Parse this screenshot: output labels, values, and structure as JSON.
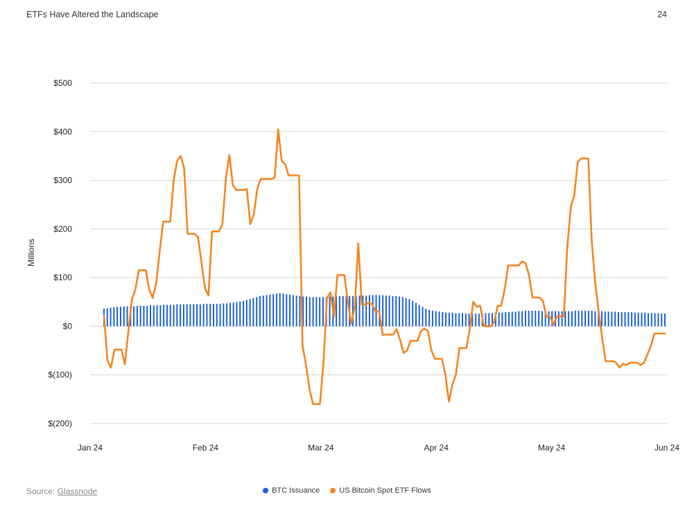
{
  "header": {
    "title": "ETFs Have Altered the Landscape",
    "page_number": "24"
  },
  "footer": {
    "source_prefix": "Source: ",
    "source_name": "Glassnode"
  },
  "colors": {
    "issuance": "#1a5fd6",
    "flows": "#f5841f",
    "grid": "#cfd6cf",
    "axis_text": "#222222"
  },
  "chart_data": {
    "type": "bar+line",
    "title": "",
    "xlabel": "",
    "ylabel": "Millions",
    "ylim": [
      -200,
      500
    ],
    "yticks": [
      500,
      400,
      300,
      200,
      100,
      0,
      -100,
      -200
    ],
    "ytick_labels": [
      "$500",
      "$400",
      "$300",
      "$200",
      "$100",
      "$0",
      "$(100)",
      "$(200)"
    ],
    "x_ticks": [
      "Jan 24",
      "Feb 24",
      "Mar 24",
      "Apr 24",
      "May 24",
      "Jun 24"
    ],
    "grid": "horizontal",
    "legend_position": "bottom-center",
    "series": [
      {
        "name": "BTC Issuance",
        "type": "bar",
        "color": "#1a5fd6",
        "values": [
          36,
          37,
          38,
          39,
          40,
          40,
          41,
          41,
          41,
          41,
          42,
          42,
          42,
          42,
          43,
          43,
          43,
          43,
          44,
          44,
          44,
          44,
          45,
          45,
          45,
          45,
          45,
          45,
          45,
          45,
          46,
          46,
          46,
          46,
          46,
          46,
          47,
          47,
          48,
          49,
          50,
          51,
          52,
          54,
          56,
          58,
          60,
          62,
          63,
          64,
          65,
          66,
          67,
          68,
          67,
          66,
          65,
          64,
          63,
          62,
          61,
          61,
          60,
          60,
          60,
          60,
          60,
          60,
          61,
          61,
          62,
          62,
          62,
          62,
          62,
          62,
          62,
          63,
          63,
          63,
          64,
          64,
          64,
          64,
          64,
          63,
          63,
          62,
          62,
          61,
          60,
          58,
          56,
          52,
          48,
          44,
          40,
          36,
          34,
          32,
          31,
          30,
          29,
          28,
          28,
          28,
          27,
          27,
          27,
          26,
          26,
          26,
          26,
          26,
          26,
          27,
          27,
          27,
          28,
          28,
          28,
          29,
          29,
          30,
          30,
          31,
          31,
          32,
          32,
          32,
          32,
          32,
          31,
          31,
          31,
          31,
          31,
          31,
          31,
          31,
          31,
          31,
          32,
          32,
          32,
          32,
          32,
          32,
          31,
          31,
          31,
          30,
          30,
          30,
          30,
          29,
          29,
          29,
          29,
          29,
          28,
          28,
          28,
          28,
          27,
          27,
          27,
          27,
          26,
          26
        ]
      },
      {
        "name": "US Bitcoin Spot ETF Flows",
        "type": "line",
        "color": "#f5841f",
        "points": [
          [
            0,
            22
          ],
          [
            1,
            -70
          ],
          [
            2,
            -85
          ],
          [
            3,
            -48
          ],
          [
            4,
            -48
          ],
          [
            5,
            -48
          ],
          [
            6,
            -78
          ],
          [
            7,
            -10
          ],
          [
            8,
            55
          ],
          [
            9,
            75
          ],
          [
            10,
            115
          ],
          [
            11,
            115
          ],
          [
            12,
            115
          ],
          [
            13,
            75
          ],
          [
            14,
            58
          ],
          [
            15,
            90
          ],
          [
            16,
            155
          ],
          [
            17,
            215
          ],
          [
            18,
            215
          ],
          [
            19,
            215
          ],
          [
            20,
            300
          ],
          [
            21,
            340
          ],
          [
            22,
            350
          ],
          [
            23,
            325
          ],
          [
            24,
            190
          ],
          [
            25,
            190
          ],
          [
            26,
            190
          ],
          [
            27,
            183
          ],
          [
            28,
            130
          ],
          [
            29,
            78
          ],
          [
            30,
            63
          ],
          [
            31,
            195
          ],
          [
            32,
            195
          ],
          [
            33,
            195
          ],
          [
            34,
            210
          ],
          [
            35,
            305
          ],
          [
            36,
            352
          ],
          [
            37,
            290
          ],
          [
            38,
            280
          ],
          [
            39,
            280
          ],
          [
            40,
            280
          ],
          [
            41,
            282
          ],
          [
            42,
            210
          ],
          [
            43,
            230
          ],
          [
            44,
            283
          ],
          [
            45,
            303
          ],
          [
            46,
            303
          ],
          [
            47,
            303
          ],
          [
            48,
            303
          ],
          [
            49,
            305
          ],
          [
            50,
            405
          ],
          [
            51,
            340
          ],
          [
            52,
            333
          ],
          [
            53,
            310
          ],
          [
            54,
            310
          ],
          [
            55,
            310
          ],
          [
            56,
            310
          ],
          [
            57,
            -40
          ],
          [
            58,
            -80
          ],
          [
            59,
            -130
          ],
          [
            60,
            -160
          ],
          [
            61,
            -160
          ],
          [
            62,
            -160
          ],
          [
            63,
            -75
          ],
          [
            64,
            58
          ],
          [
            65,
            70
          ],
          [
            66,
            20
          ],
          [
            67,
            105
          ],
          [
            68,
            105
          ],
          [
            69,
            105
          ],
          [
            70,
            50
          ],
          [
            71,
            5
          ],
          [
            72,
            40
          ],
          [
            73,
            170
          ],
          [
            74,
            45
          ],
          [
            75,
            45
          ],
          [
            76,
            48
          ],
          [
            77,
            45
          ],
          [
            78,
            30
          ],
          [
            79,
            30
          ],
          [
            80,
            -18
          ],
          [
            81,
            -17
          ],
          [
            82,
            -17
          ],
          [
            83,
            -17
          ],
          [
            84,
            -6
          ],
          [
            85,
            -28
          ],
          [
            86,
            -55
          ],
          [
            87,
            -50
          ],
          [
            88,
            -30
          ],
          [
            89,
            -30
          ],
          [
            90,
            -30
          ],
          [
            91,
            -10
          ],
          [
            92,
            -5
          ],
          [
            93,
            -10
          ],
          [
            94,
            -50
          ],
          [
            95,
            -67
          ],
          [
            96,
            -67
          ],
          [
            97,
            -67
          ],
          [
            98,
            -100
          ],
          [
            99,
            -155
          ],
          [
            100,
            -120
          ],
          [
            101,
            -100
          ],
          [
            102,
            -45
          ],
          [
            103,
            -45
          ],
          [
            104,
            -45
          ],
          [
            105,
            -5
          ],
          [
            106,
            50
          ],
          [
            107,
            40
          ],
          [
            108,
            42
          ],
          [
            109,
            0
          ],
          [
            110,
            0
          ],
          [
            111,
            0
          ],
          [
            112,
            8
          ],
          [
            113,
            42
          ],
          [
            114,
            42
          ],
          [
            115,
            75
          ],
          [
            116,
            125
          ],
          [
            117,
            125
          ],
          [
            118,
            125
          ],
          [
            119,
            125
          ],
          [
            120,
            133
          ],
          [
            121,
            130
          ],
          [
            122,
            105
          ],
          [
            123,
            59
          ],
          [
            124,
            59
          ],
          [
            125,
            59
          ],
          [
            126,
            52
          ],
          [
            127,
            20
          ],
          [
            128,
            20
          ],
          [
            129,
            3
          ],
          [
            130,
            20
          ],
          [
            131,
            20
          ],
          [
            132,
            20
          ],
          [
            133,
            165
          ],
          [
            134,
            245
          ],
          [
            135,
            270
          ],
          [
            136,
            338
          ],
          [
            137,
            345
          ],
          [
            138,
            345
          ],
          [
            139,
            345
          ],
          [
            140,
            175
          ],
          [
            141,
            90
          ],
          [
            142,
            30
          ],
          [
            143,
            -25
          ],
          [
            144,
            -72
          ],
          [
            145,
            -72
          ],
          [
            146,
            -72
          ],
          [
            147,
            -75
          ],
          [
            148,
            -85
          ],
          [
            149,
            -77
          ],
          [
            150,
            -80
          ],
          [
            151,
            -75
          ],
          [
            152,
            -75
          ],
          [
            153,
            -75
          ],
          [
            154,
            -80
          ],
          [
            155,
            -75
          ],
          [
            156,
            -58
          ],
          [
            157,
            -40
          ],
          [
            158,
            -15
          ],
          [
            159,
            -15
          ],
          [
            160,
            -15
          ],
          [
            161,
            -15
          ]
        ]
      }
    ]
  }
}
